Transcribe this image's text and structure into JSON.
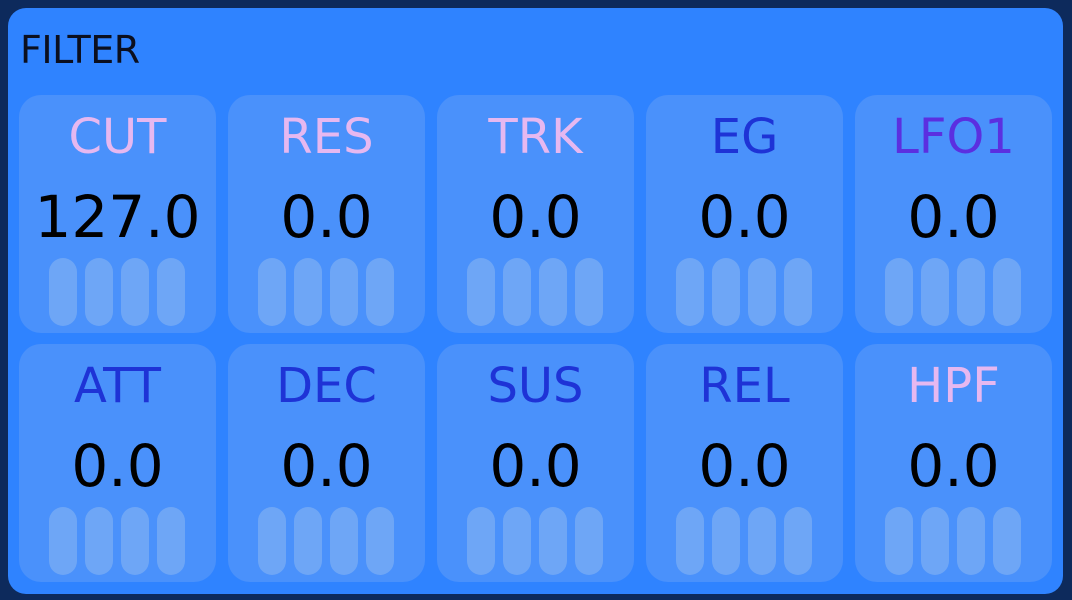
{
  "panel": {
    "title": "FILTER"
  },
  "cells": [
    {
      "label": "CUT",
      "value": "127.0",
      "color": "#e6b8f0"
    },
    {
      "label": "RES",
      "value": "0.0",
      "color": "#e6b8f0"
    },
    {
      "label": "TRK",
      "value": "0.0",
      "color": "#e6b8f0"
    },
    {
      "label": "EG",
      "value": "0.0",
      "color": "#1e33d6"
    },
    {
      "label": "LFO1",
      "value": "0.0",
      "color": "#5b2fe0"
    },
    {
      "label": "ATT",
      "value": "0.0",
      "color": "#1e33d6"
    },
    {
      "label": "DEC",
      "value": "0.0",
      "color": "#1e33d6"
    },
    {
      "label": "SUS",
      "value": "0.0",
      "color": "#1e33d6"
    },
    {
      "label": "REL",
      "value": "0.0",
      "color": "#1e33d6"
    },
    {
      "label": "HPF",
      "value": "0.0",
      "color": "#e6b8f0"
    }
  ]
}
